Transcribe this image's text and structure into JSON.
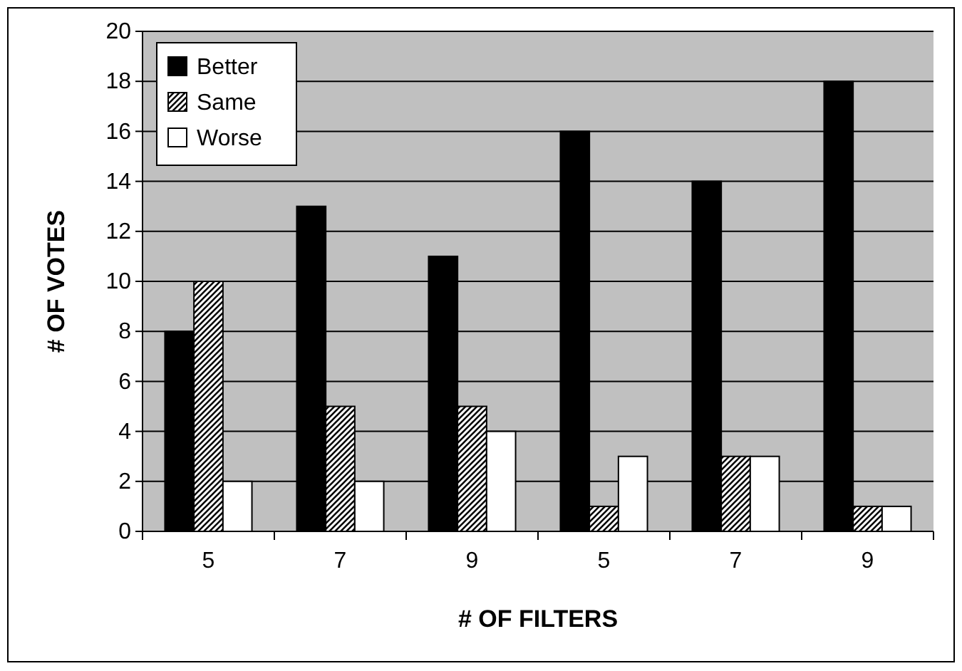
{
  "chart_data": {
    "type": "bar",
    "xlabel": "# OF FILTERS",
    "ylabel": "# OF VOTES",
    "categories": [
      "5",
      "7",
      "9",
      "5",
      "7",
      "9"
    ],
    "series": [
      {
        "name": "Better",
        "color": "#000000",
        "values": [
          8,
          13,
          11,
          16,
          14,
          18
        ]
      },
      {
        "name": "Same",
        "color": "#000000",
        "values": [
          10,
          5,
          5,
          1,
          3,
          1
        ]
      },
      {
        "name": "Worse",
        "color": "#ffffff",
        "values": [
          2,
          2,
          4,
          3,
          3,
          1
        ]
      }
    ],
    "ylim": [
      0,
      20
    ],
    "yticks": [
      0,
      2,
      4,
      6,
      8,
      10,
      12,
      14,
      16,
      18,
      20
    ],
    "grid": "y",
    "legend": "top left"
  }
}
